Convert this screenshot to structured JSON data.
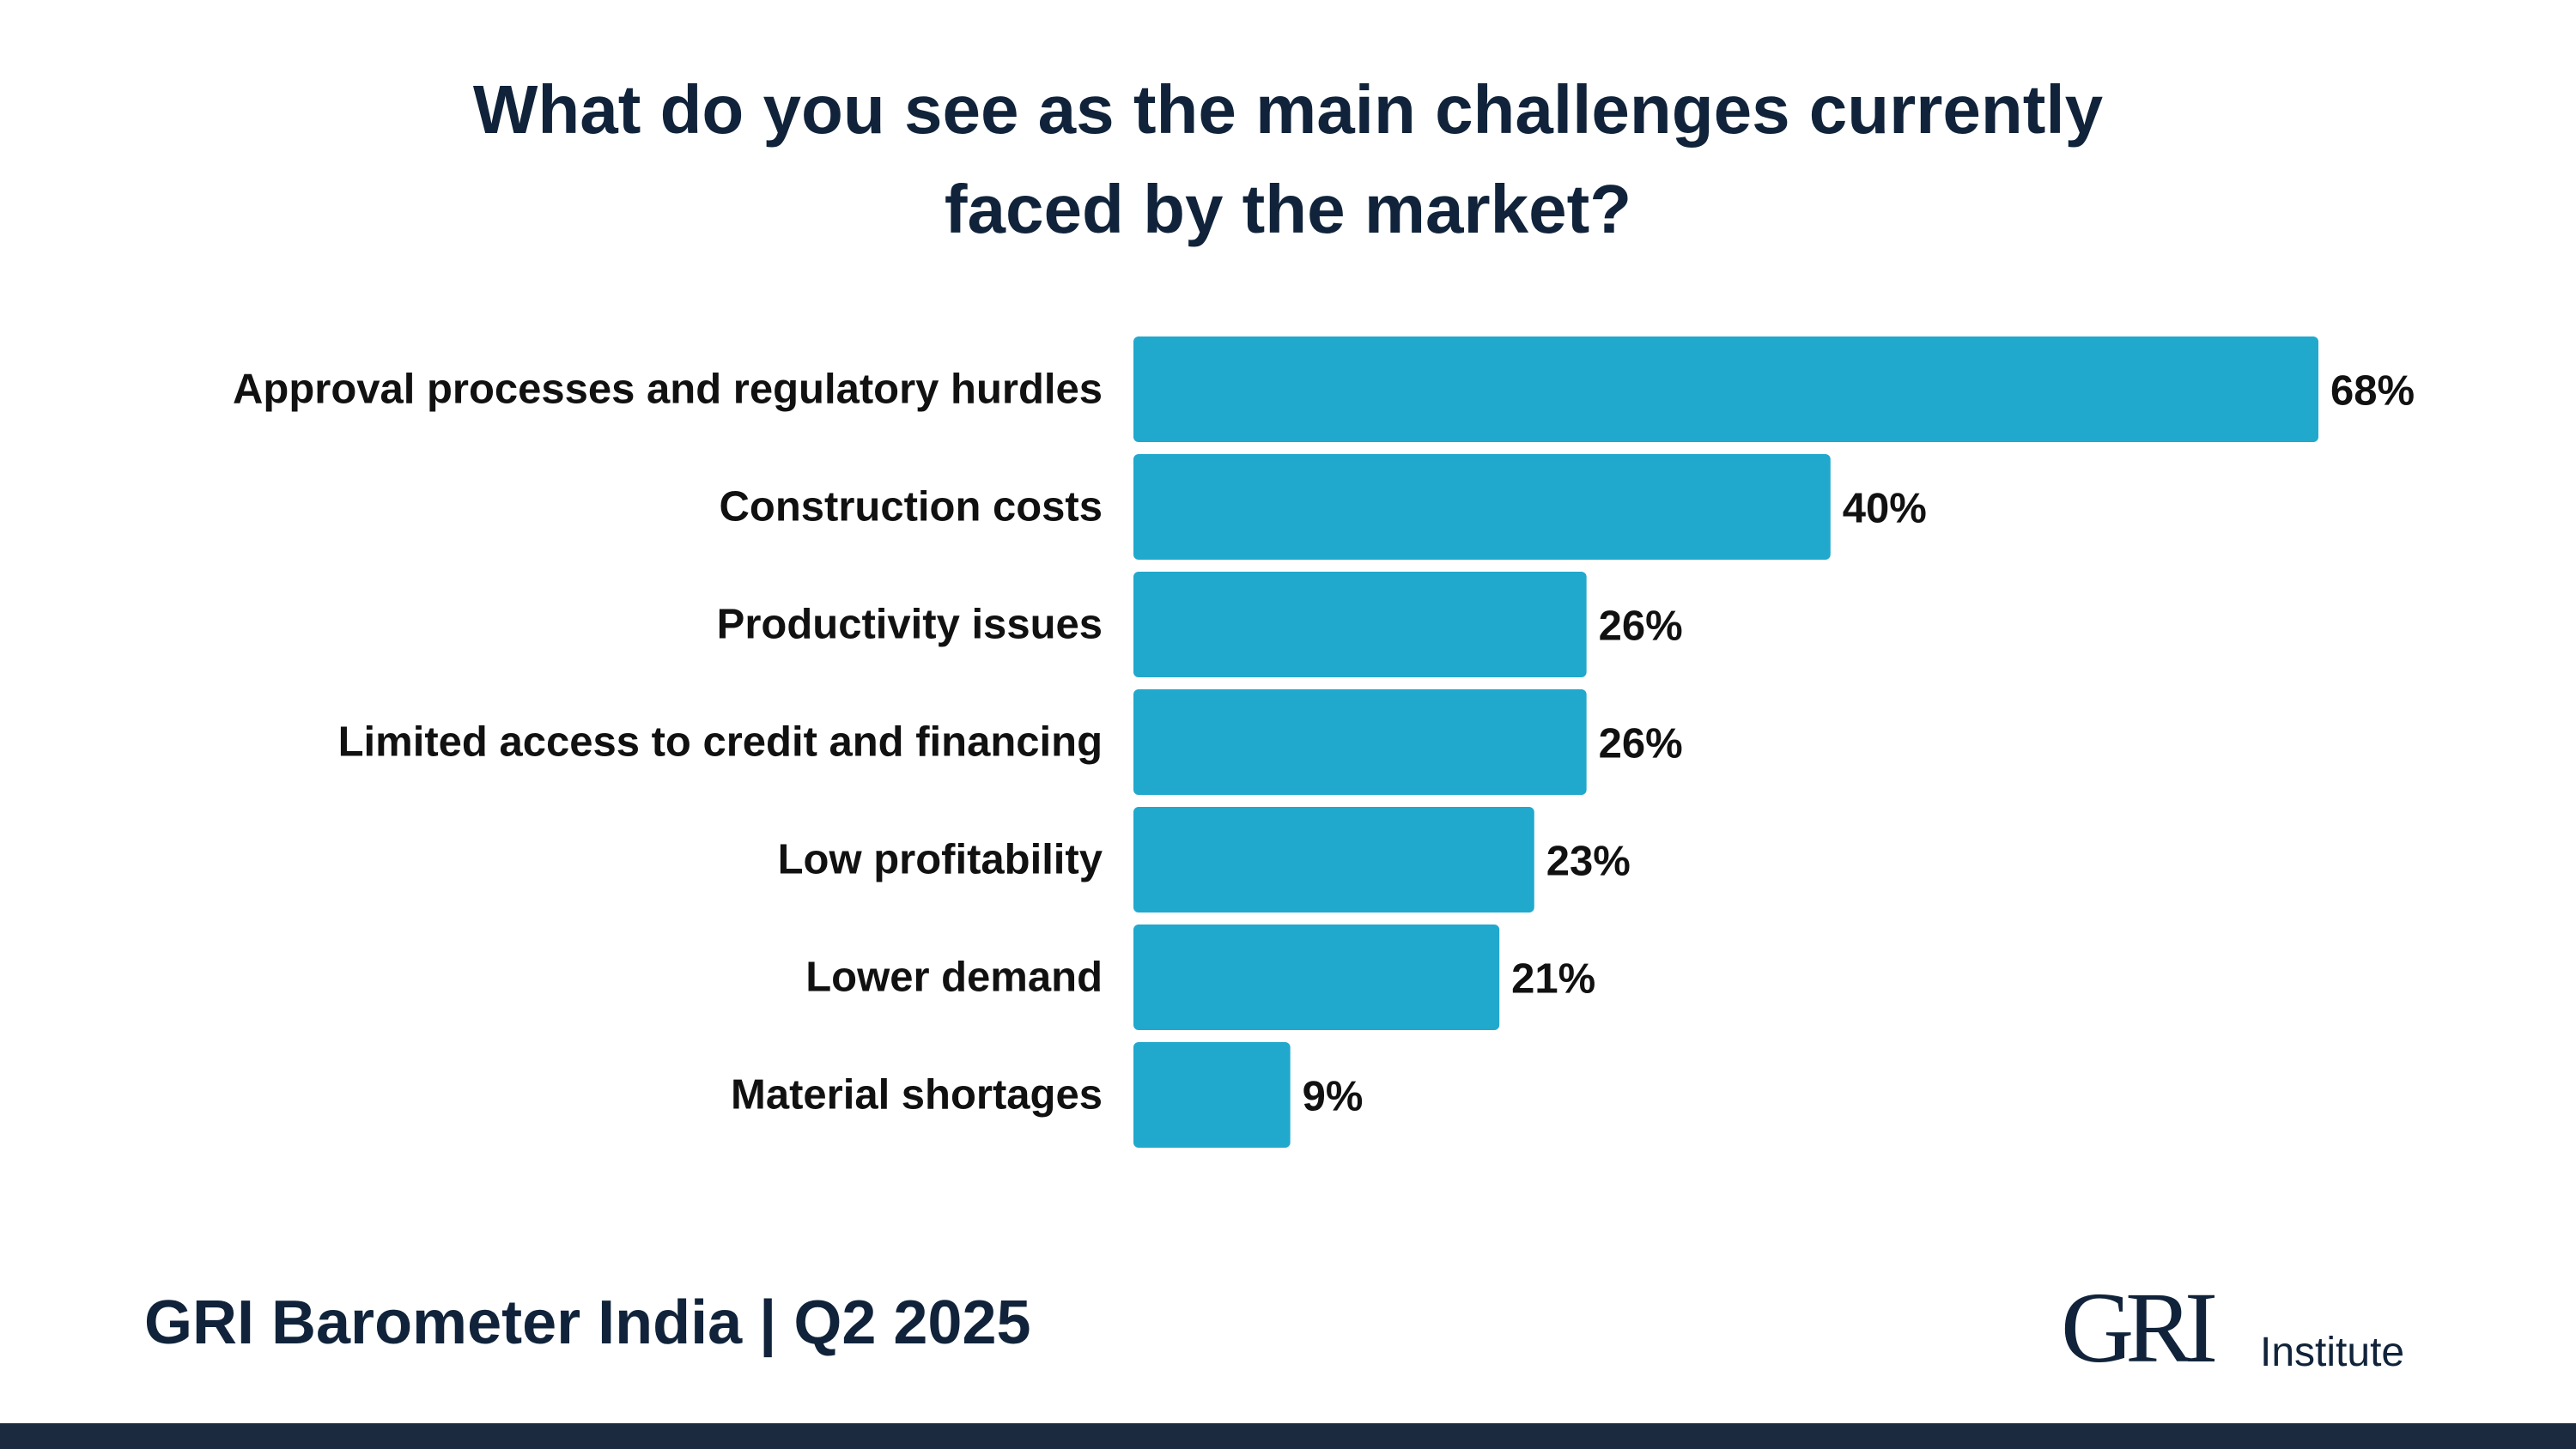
{
  "colors": {
    "bar": "#21a8cd",
    "text": "#10233a",
    "bottom_bar": "#1b2a3e"
  },
  "header": {
    "title_line1": "What do you see as the main challenges currently",
    "title_line2": "faced by the market?"
  },
  "chart_data": {
    "type": "bar",
    "orientation": "horizontal",
    "title": "What do you see as the main challenges currently faced by the market?",
    "categories": [
      "Approval processes and regulatory hurdles",
      "Construction costs",
      "Productivity issues",
      "Limited access to credit and financing",
      "Low profitability",
      "Lower demand",
      "Material shortages"
    ],
    "values": [
      68,
      40,
      26,
      26,
      23,
      21,
      9
    ],
    "value_labels": [
      "68%",
      "40%",
      "26%",
      "26%",
      "23%",
      "21%",
      "9%"
    ],
    "unit": "%",
    "xlim": [
      0,
      68
    ],
    "grid": false,
    "legend": "none"
  },
  "footer": {
    "title": "GRI Barometer India | Q2 2025",
    "logo_mark": "GRI",
    "logo_sub": "Institute"
  }
}
